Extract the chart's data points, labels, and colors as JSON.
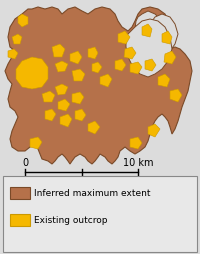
{
  "background_color": "#dcdcdc",
  "map_bg": "#dcdcdc",
  "brown_color": "#b5714a",
  "yellow_color": "#f5b800",
  "outline_color": "#7a4a28",
  "legend_brown_label": "Inferred maximum extent",
  "legend_yellow_label": "Existing outcrop",
  "scalebar_label_0": "0",
  "scalebar_label_10": "10 km",
  "legend_fontsize": 6.5,
  "scalebar_fontsize": 7
}
